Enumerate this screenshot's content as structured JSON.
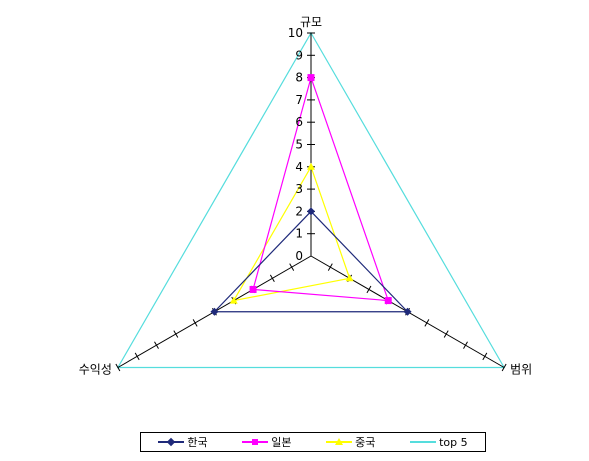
{
  "chart_data": {
    "type": "radar",
    "axes": [
      "규모",
      "범위",
      "수익성"
    ],
    "ticks": [
      0,
      1,
      2,
      3,
      4,
      5,
      6,
      7,
      8,
      9,
      10
    ],
    "range": [
      0,
      10
    ],
    "series": [
      {
        "name": "한국",
        "values": [
          2,
          5,
          5
        ],
        "color": "#1f2a7a",
        "marker": "diamond"
      },
      {
        "name": "일본",
        "values": [
          8,
          4,
          3
        ],
        "color": "#ff00ff",
        "marker": "square"
      },
      {
        "name": "중국",
        "values": [
          4,
          2,
          4
        ],
        "color": "#ffff00",
        "marker": "triangle"
      },
      {
        "name": "top 5",
        "values": [
          10,
          10,
          10
        ],
        "color": "#55dddd",
        "marker": "none"
      }
    ],
    "legend": "bottom"
  }
}
